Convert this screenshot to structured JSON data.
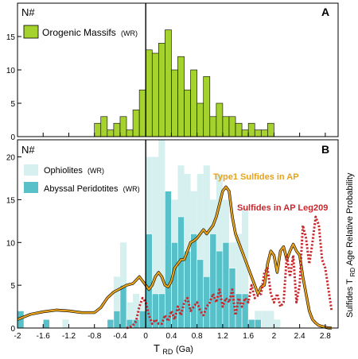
{
  "xlabel": {
    "main": "T",
    "sub": "RD",
    "units": " (Ga)"
  },
  "right_label": {
    "pre": "Sulfides T",
    "sub": "RD",
    "post": " Age Relative Probability"
  },
  "colors": {
    "orogenic": "#a6d22e",
    "ophiolite": "#d6efef",
    "abyssal": "#58c0c8",
    "type1": "#e8a21a",
    "leg209": "#c8282c",
    "axis": "#000000"
  },
  "chart_data": [
    {
      "type": "bar",
      "panel_letter": "A",
      "ylabel": "N#",
      "x_edges": [
        -2.0,
        -1.9,
        -1.8,
        -1.7,
        -1.6,
        -1.5,
        -1.4,
        -1.3,
        -1.2,
        -1.1,
        -1.0,
        -0.9,
        -0.8,
        -0.7,
        -0.6,
        -0.5,
        -0.4,
        -0.3,
        -0.2,
        -0.1,
        0.0,
        0.1,
        0.2,
        0.3,
        0.4,
        0.5,
        0.6,
        0.7,
        0.8,
        0.9,
        1.0,
        1.1,
        1.2,
        1.3,
        1.4,
        1.5,
        1.6,
        1.7,
        1.8,
        1.9,
        2.0,
        2.1,
        2.2
      ],
      "ylim": [
        0,
        20
      ],
      "yticks": [
        0,
        5,
        10,
        15
      ],
      "xlim": [
        -2.0,
        3.0
      ],
      "xticks": [
        -2,
        -1.6,
        -1.2,
        -0.8,
        -0.4,
        0,
        0.4,
        0.8,
        1.2,
        1.6,
        2,
        2.4,
        2.8
      ],
      "vline_x": 0,
      "series": [
        {
          "name": "Orogenic Massifs",
          "name_suffix": "(WR)",
          "color_key": "orogenic",
          "values": [
            0,
            0,
            0,
            0,
            0,
            0,
            0,
            0,
            0,
            0,
            0,
            0,
            2,
            3,
            1,
            2,
            3,
            1,
            4,
            7,
            13,
            12.5,
            14,
            16,
            10,
            12,
            7,
            10,
            5,
            9,
            3,
            5,
            3,
            3,
            2,
            1,
            2,
            1,
            1,
            2,
            0,
            0
          ]
        }
      ]
    },
    {
      "type": "bar+line",
      "panel_letter": "B",
      "ylabel": "N#",
      "x_edges": [
        -2.0,
        -1.9,
        -1.8,
        -1.7,
        -1.6,
        -1.5,
        -1.4,
        -1.3,
        -1.2,
        -1.1,
        -1.0,
        -0.9,
        -0.8,
        -0.7,
        -0.6,
        -0.5,
        -0.4,
        -0.3,
        -0.2,
        -0.1,
        0.0,
        0.1,
        0.2,
        0.3,
        0.4,
        0.5,
        0.6,
        0.7,
        0.8,
        0.9,
        1.0,
        1.1,
        1.2,
        1.3,
        1.4,
        1.5,
        1.6,
        1.7,
        1.8,
        1.9,
        2.0,
        2.1,
        2.2
      ],
      "ylim": [
        0,
        22
      ],
      "yticks": [
        0,
        5,
        10,
        15,
        20
      ],
      "xlim": [
        -2.0,
        3.0
      ],
      "xticks": [
        -2,
        -1.6,
        -1.2,
        -0.8,
        -0.4,
        0,
        0.4,
        0.8,
        1.2,
        1.6,
        2,
        2.4,
        2.8
      ],
      "vline_x": 0,
      "bar_series": [
        {
          "name": "Ophiolites",
          "name_suffix": "(WR)",
          "color_key": "ophiolite",
          "values": [
            0,
            0,
            0,
            0,
            0,
            0,
            0,
            1,
            0,
            0,
            0,
            0,
            0,
            0,
            1,
            6,
            10,
            3,
            4,
            3,
            20,
            20,
            22,
            10,
            15,
            19,
            18,
            16,
            18,
            19,
            15,
            18,
            15,
            10,
            11,
            14,
            1,
            2,
            2,
            2,
            1,
            0
          ]
        },
        {
          "name": "Abyssal Peridotites",
          "name_suffix": "(WR)",
          "color_key": "abyssal",
          "values": [
            2,
            0,
            0,
            0,
            1,
            0,
            0,
            0,
            0,
            0,
            0,
            0,
            0,
            0,
            1,
            2,
            5,
            1,
            1,
            2,
            11,
            4,
            4,
            16,
            10,
            13,
            9,
            11,
            8,
            6,
            11,
            9,
            10,
            7,
            4,
            4,
            1,
            1,
            0,
            0,
            0,
            0
          ]
        }
      ],
      "line_series": [
        {
          "name": "Type1 Sulfides in AP",
          "color_key": "type1",
          "x": [
            -2.0,
            -1.8,
            -1.6,
            -1.4,
            -1.2,
            -1.0,
            -0.8,
            -0.7,
            -0.6,
            -0.5,
            -0.4,
            -0.3,
            -0.2,
            -0.1,
            0.0,
            0.05,
            0.1,
            0.15,
            0.2,
            0.25,
            0.3,
            0.35,
            0.4,
            0.45,
            0.5,
            0.55,
            0.6,
            0.65,
            0.7,
            0.75,
            0.8,
            0.85,
            0.9,
            0.95,
            1.0,
            1.05,
            1.1,
            1.15,
            1.2,
            1.25,
            1.3,
            1.35,
            1.4,
            1.45,
            1.5,
            1.55,
            1.6,
            1.65,
            1.7,
            1.75,
            1.8,
            1.85,
            1.9,
            1.95,
            2.0,
            2.05,
            2.1,
            2.15,
            2.2,
            2.25,
            2.3,
            2.35,
            2.4,
            2.45,
            2.5,
            2.55,
            2.6,
            2.65,
            2.7,
            2.75,
            2.8,
            2.85,
            2.9
          ],
          "values": [
            1.0,
            1.6,
            1.9,
            2.1,
            2.0,
            1.8,
            1.8,
            2.4,
            3.5,
            4.2,
            4.6,
            5.0,
            5.2,
            6.0,
            5.0,
            4.5,
            5.0,
            6.0,
            6.5,
            6.0,
            5.0,
            4.8,
            5.5,
            7.0,
            7.5,
            8.0,
            8.0,
            9.0,
            10.0,
            10.2,
            10.5,
            11.0,
            11.5,
            11.0,
            11.5,
            12.0,
            13.0,
            14.5,
            16.0,
            16.5,
            16.0,
            13.0,
            11.0,
            10.0,
            9.0,
            8.0,
            7.0,
            6.0,
            5.0,
            4.0,
            4.8,
            5.0,
            7.5,
            9.0,
            8.5,
            6.5,
            9.0,
            9.5,
            8.0,
            9.0,
            9.8,
            9.0,
            8.5,
            6.0,
            4.0,
            2.0,
            1.0,
            0.6,
            0.3,
            0.2,
            0.1,
            0.0,
            0.0
          ]
        },
        {
          "name": "Sulfides in AP Leg209",
          "color_key": "leg209",
          "x": [
            -0.3,
            -0.25,
            -0.2,
            -0.15,
            -0.1,
            -0.05,
            0.0,
            0.05,
            0.1,
            0.15,
            0.2,
            0.25,
            0.3,
            0.35,
            0.4,
            0.45,
            0.5,
            0.55,
            0.6,
            0.65,
            0.7,
            0.75,
            0.8,
            0.85,
            0.9,
            0.95,
            1.0,
            1.05,
            1.1,
            1.15,
            1.2,
            1.25,
            1.3,
            1.35,
            1.4,
            1.45,
            1.5,
            1.55,
            1.6,
            1.65,
            1.7,
            1.75,
            1.8,
            1.85,
            1.9,
            1.95,
            2.0,
            2.05,
            2.1,
            2.15,
            2.2,
            2.25,
            2.3,
            2.35,
            2.4,
            2.45,
            2.5,
            2.55,
            2.6,
            2.65,
            2.7,
            2.75,
            2.8,
            2.85,
            2.9
          ],
          "values": [
            0.0,
            0.1,
            0.3,
            0.8,
            2.5,
            3.5,
            3.0,
            1.5,
            0.5,
            1.0,
            0.5,
            0.5,
            1.5,
            0.8,
            2.0,
            1.0,
            2.5,
            1.5,
            3.0,
            3.5,
            2.0,
            2.5,
            3.0,
            2.0,
            1.5,
            2.5,
            3.0,
            4.0,
            3.0,
            4.5,
            2.5,
            3.5,
            3.0,
            4.5,
            1.5,
            3.5,
            2.5,
            3.5,
            3.0,
            5.0,
            3.5,
            3.8,
            4.0,
            6.5,
            7.0,
            4.0,
            3.0,
            4.0,
            2.5,
            3.0,
            8.5,
            6.0,
            8.5,
            3.0,
            5.0,
            12.0,
            10.5,
            7.5,
            10.0,
            13.0,
            12.0,
            8.0,
            7.0,
            4.5,
            2.0
          ]
        }
      ]
    }
  ]
}
